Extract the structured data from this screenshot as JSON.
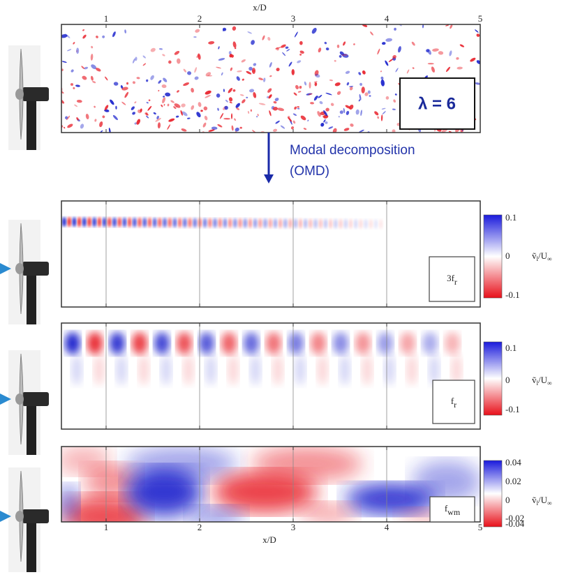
{
  "top_panel": {
    "x_label": "x/D",
    "x_ticks": [
      "1",
      "2",
      "3",
      "4",
      "5"
    ],
    "lambda_label": "λ = 6"
  },
  "arrow_label": {
    "line1": "Modal decomposition",
    "line2": "(OMD)"
  },
  "panels": [
    {
      "mode": {
        "main": "3f",
        "sub": "r"
      },
      "colorbar_ticks": [
        "0.1",
        "0",
        "-0.1"
      ]
    },
    {
      "mode": {
        "main": "f",
        "sub": "r"
      },
      "colorbar_ticks": [
        "0.1",
        "0",
        "-0.1"
      ]
    },
    {
      "mode": {
        "main": "f",
        "sub": "wm"
      },
      "colorbar_ticks": [
        "0.04",
        "0.02",
        "0",
        "-0.02",
        "-0.04"
      ]
    }
  ],
  "colorbar_label": {
    "symbol": "ṽ",
    "sub1": "l",
    "mid": "/U",
    "sub2": "∞"
  },
  "bottom_axis": {
    "x_ticks": [
      "1",
      "2",
      "3",
      "4",
      "5"
    ],
    "x_label": "x/D"
  }
}
